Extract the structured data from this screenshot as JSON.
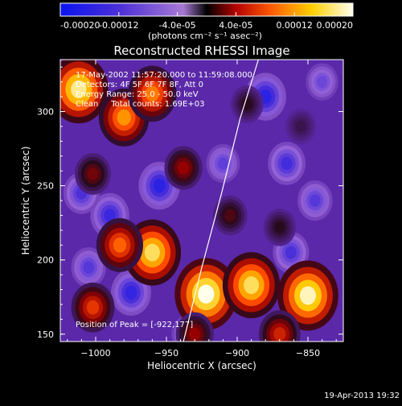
{
  "chart_data": {
    "type": "heatmap",
    "title": "Reconstructed RHESSI Image",
    "xlabel": "Heliocentric X (arcsec)",
    "ylabel": "Heliocentric Y (arcsec)",
    "xlim": [
      -1025,
      -825
    ],
    "ylim": [
      145,
      335
    ],
    "x_ticks": [
      -1000,
      -950,
      -900,
      -850
    ],
    "y_ticks": [
      150,
      200,
      250,
      300
    ],
    "colorbar": {
      "range": [
        -0.0002,
        0.0002
      ],
      "tick_values": [
        -0.0002,
        -0.00012,
        -4e-05,
        4e-05,
        0.00012,
        0.0002
      ],
      "tick_labels": [
        "-0.00020",
        "-0.00012",
        "-4.0e-05",
        "4.0e-05",
        "0.00012",
        "0.00020"
      ],
      "unit_label": "(photons cm⁻² s⁻¹ asec⁻²)"
    },
    "annotations": [
      "17-May-2002 11:57:20.000 to 11:59:08.000",
      "Detectors: 4F 5F 6F 7F 8F, Att 0",
      "Energy Range: 25.0 - 50.0 keV",
      "Clean     Total counts: 1.69E+03",
      "Position of Peak = [-922,177]"
    ],
    "peak_position": [
      -922,
      177
    ],
    "sources": [
      {
        "x": -922,
        "y": 177,
        "value": 0.0002
      },
      {
        "x": -1012,
        "y": 315,
        "value": 0.00018
      },
      {
        "x": -980,
        "y": 296,
        "value": 0.00013
      },
      {
        "x": -960,
        "y": 312,
        "value": 0.00012
      },
      {
        "x": -938,
        "y": 262,
        "value": 6e-05
      },
      {
        "x": -1002,
        "y": 258,
        "value": 5e-05
      },
      {
        "x": -960,
        "y": 205,
        "value": 0.00017
      },
      {
        "x": -983,
        "y": 210,
        "value": 0.00011
      },
      {
        "x": -1002,
        "y": 168,
        "value": 9e-05
      },
      {
        "x": -890,
        "y": 183,
        "value": 0.00017
      },
      {
        "x": -850,
        "y": 176,
        "value": 0.00019
      },
      {
        "x": -905,
        "y": 230,
        "value": 4e-05
      },
      {
        "x": -870,
        "y": 222,
        "value": 3e-05
      },
      {
        "x": -855,
        "y": 290,
        "value": 2e-05
      },
      {
        "x": -893,
        "y": 305,
        "value": 3e-05
      },
      {
        "x": -930,
        "y": 150,
        "value": 6e-05
      },
      {
        "x": -870,
        "y": 150,
        "value": 8e-05
      },
      {
        "x": -990,
        "y": 230,
        "value": -0.00014
      },
      {
        "x": -1010,
        "y": 245,
        "value": -0.00012
      },
      {
        "x": -955,
        "y": 250,
        "value": -0.00016
      },
      {
        "x": -880,
        "y": 310,
        "value": -0.00016
      },
      {
        "x": -865,
        "y": 265,
        "value": -0.00013
      },
      {
        "x": -975,
        "y": 178,
        "value": -0.00015
      },
      {
        "x": -1005,
        "y": 195,
        "value": -0.00011
      },
      {
        "x": -862,
        "y": 205,
        "value": -0.00012
      },
      {
        "x": -910,
        "y": 265,
        "value": -0.0001
      },
      {
        "x": -935,
        "y": 150,
        "value": -9e-05
      },
      {
        "x": -845,
        "y": 240,
        "value": -0.00011
      },
      {
        "x": -840,
        "y": 320,
        "value": -9e-05
      }
    ],
    "limb_curve": [
      [
        -938,
        145
      ],
      [
        -925,
        195
      ],
      [
        -911,
        245
      ],
      [
        -898,
        295
      ],
      [
        -885,
        335
      ]
    ]
  },
  "footer": {
    "date": "19-Apr-2013 19:32"
  }
}
